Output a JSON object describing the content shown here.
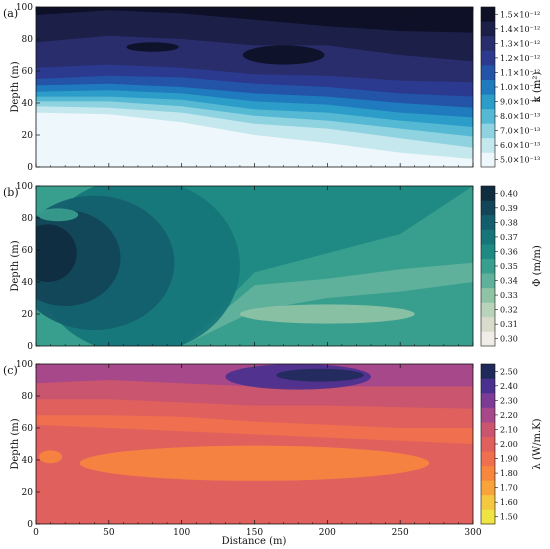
{
  "figure": {
    "xlabel": "Distance (m)"
  },
  "chart_data": [
    {
      "type": "heatmap",
      "panel_label": "(a)",
      "ylabel": "Depth (m)",
      "x": [
        0,
        300
      ],
      "y": [
        0,
        100
      ],
      "xticks": [
        0,
        50,
        100,
        150,
        200,
        250,
        300
      ],
      "yticks": [
        0,
        20,
        40,
        60,
        80,
        100
      ],
      "colorbar_label": "k (m²)",
      "colorbar_ticks": [
        "5.0×10⁻¹³",
        "6.0×10⁻¹³",
        "7.0×10⁻¹³",
        "8.0×10⁻¹³",
        "9.0×10⁻¹³",
        "1.0×10⁻¹²",
        "1.1×10⁻¹²",
        "1.2×10⁻¹²",
        "1.3×10⁻¹²",
        "1.4×10⁻¹²",
        "1.5×10⁻¹²"
      ],
      "colors": [
        "#eef7fb",
        "#c5e7ee",
        "#8fd3e0",
        "#55b9d4",
        "#2c9cc8",
        "#1f7bbd",
        "#2354a8",
        "#2b3a8f",
        "#292d6b",
        "#1c1f48",
        "#0d1026"
      ],
      "bands": [
        {
          "level": 0,
          "upper": [
            [
              0,
              34
            ],
            [
              50,
              33
            ],
            [
              100,
              28
            ],
            [
              150,
              20
            ],
            [
              200,
              15
            ],
            [
              250,
              9
            ],
            [
              300,
              5
            ]
          ]
        },
        {
          "level": 1,
          "upper": [
            [
              0,
              38
            ],
            [
              50,
              37
            ],
            [
              100,
              34
            ],
            [
              150,
              27
            ],
            [
              200,
              24
            ],
            [
              250,
              18
            ],
            [
              300,
              12
            ]
          ]
        },
        {
          "level": 2,
          "upper": [
            [
              0,
              41
            ],
            [
              50,
              41
            ],
            [
              100,
              38
            ],
            [
              150,
              32
            ],
            [
              200,
              29
            ],
            [
              250,
              24
            ],
            [
              300,
              19
            ]
          ]
        },
        {
          "level": 3,
          "upper": [
            [
              0,
              44
            ],
            [
              50,
              44
            ],
            [
              100,
              42
            ],
            [
              150,
              36
            ],
            [
              200,
              34
            ],
            [
              250,
              29
            ],
            [
              300,
              25
            ]
          ]
        },
        {
          "level": 4,
          "upper": [
            [
              0,
              47
            ],
            [
              50,
              48
            ],
            [
              100,
              46
            ],
            [
              150,
              41
            ],
            [
              200,
              39
            ],
            [
              250,
              34
            ],
            [
              300,
              31
            ]
          ]
        },
        {
          "level": 5,
          "upper": [
            [
              0,
              51
            ],
            [
              50,
              52
            ],
            [
              100,
              50
            ],
            [
              150,
              46
            ],
            [
              200,
              44
            ],
            [
              250,
              40
            ],
            [
              300,
              37
            ]
          ]
        },
        {
          "level": 6,
          "upper": [
            [
              0,
              55
            ],
            [
              50,
              57
            ],
            [
              100,
              56
            ],
            [
              150,
              52
            ],
            [
              200,
              50
            ],
            [
              250,
              46
            ],
            [
              300,
              44
            ]
          ]
        },
        {
          "level": 7,
          "upper": [
            [
              0,
              62
            ],
            [
              50,
              64
            ],
            [
              100,
              62
            ],
            [
              150,
              58
            ],
            [
              200,
              57
            ],
            [
              250,
              54
            ],
            [
              300,
              53
            ]
          ]
        },
        {
          "level": 8,
          "upper": [
            [
              0,
              78
            ],
            [
              50,
              82
            ],
            [
              100,
              80
            ],
            [
              150,
              76
            ],
            [
              200,
              76
            ],
            [
              250,
              70
            ],
            [
              300,
              66
            ]
          ]
        },
        {
          "level": 9,
          "upper": [
            [
              0,
              95
            ],
            [
              50,
              98
            ],
            [
              100,
              96
            ],
            [
              150,
              92
            ],
            [
              200,
              88
            ],
            [
              250,
              85
            ],
            [
              300,
              84
            ]
          ]
        },
        {
          "level": 8,
          "upper": [
            [
              0,
              100
            ],
            [
              300,
              100
            ]
          ]
        }
      ],
      "blobs": [
        {
          "level": 10,
          "center": [
            170,
            70
          ],
          "radius": [
            28,
            6
          ]
        },
        {
          "level": 10,
          "center": [
            80,
            75
          ],
          "radius": [
            18,
            3
          ]
        }
      ]
    },
    {
      "type": "heatmap",
      "panel_label": "(b)",
      "ylabel": "Depth (m)",
      "x": [
        0,
        300
      ],
      "y": [
        0,
        100
      ],
      "xticks": [
        0,
        50,
        100,
        150,
        200,
        250,
        300
      ],
      "yticks": [
        0,
        20,
        40,
        60,
        80,
        100
      ],
      "colorbar_label": "Φ (m/m)",
      "colorbar_ticks": [
        "0.30",
        "0.31",
        "0.32",
        "0.33",
        "0.34",
        "0.35",
        "0.36",
        "0.37",
        "0.38",
        "0.39",
        "0.40"
      ],
      "colors": [
        "#f0ede9",
        "#d9dccd",
        "#b8d3b9",
        "#8fc3a6",
        "#5fb19b",
        "#389e8d",
        "#1e8a83",
        "#157579",
        "#135e6c",
        "#124558",
        "#0f2d3f"
      ],
      "bands": [
        {
          "level": 5,
          "upper": [
            [
              0,
              0
            ],
            [
              300,
              0
            ]
          ]
        },
        {
          "level": 4,
          "upper": [
            [
              100,
              0
            ],
            [
              150,
              22
            ],
            [
              200,
              30
            ],
            [
              250,
              34
            ],
            [
              300,
              40
            ]
          ]
        },
        {
          "level": 5,
          "upper": [
            [
              100,
              0
            ],
            [
              150,
              38
            ],
            [
              200,
              42
            ],
            [
              250,
              48
            ],
            [
              300,
              52
            ]
          ]
        },
        {
          "level": 6,
          "upper": [
            [
              100,
              0
            ],
            [
              150,
              46
            ],
            [
              200,
              58
            ],
            [
              250,
              70
            ],
            [
              300,
              100
            ]
          ]
        }
      ],
      "blobs": [
        {
          "level": 7,
          "center": [
            70,
            50
          ],
          "radius": [
            70,
            55
          ]
        },
        {
          "level": 8,
          "center": [
            40,
            52
          ],
          "radius": [
            55,
            42
          ]
        },
        {
          "level": 9,
          "center": [
            20,
            55
          ],
          "radius": [
            38,
            30
          ]
        },
        {
          "level": 10,
          "center": [
            8,
            58
          ],
          "radius": [
            20,
            18
          ]
        },
        {
          "level": 5,
          "center": [
            15,
            82
          ],
          "radius": [
            14,
            4
          ]
        },
        {
          "level": 3,
          "center": [
            200,
            20
          ],
          "radius": [
            60,
            6
          ]
        }
      ]
    },
    {
      "type": "heatmap",
      "panel_label": "(c)",
      "ylabel": "Depth (m)",
      "x": [
        0,
        300
      ],
      "y": [
        0,
        100
      ],
      "xticks": [
        0,
        50,
        100,
        150,
        200,
        250,
        300
      ],
      "yticks": [
        0,
        20,
        40,
        60,
        80,
        100
      ],
      "colorbar_label": "λ (W/m.K)",
      "colorbar_ticks": [
        "1.50",
        "1.60",
        "1.70",
        "1.80",
        "1.90",
        "2.00",
        "2.10",
        "2.20",
        "2.30",
        "2.40",
        "2.50"
      ],
      "colors": [
        "#f0e442",
        "#f5c842",
        "#f9a33b",
        "#f7863f",
        "#ef6f4e",
        "#e0605e",
        "#c9556e",
        "#a6488a",
        "#7c3c95",
        "#4b318f",
        "#1f2a5b"
      ],
      "bands": [
        {
          "level": 5,
          "upper": [
            [
              0,
              5
            ],
            [
              100,
              6
            ],
            [
              200,
              4
            ],
            [
              300,
              3
            ]
          ]
        },
        {
          "level": 4,
          "upper": [
            [
              0,
              62
            ],
            [
              50,
              60
            ],
            [
              100,
              58
            ],
            [
              150,
              56
            ],
            [
              200,
              54
            ],
            [
              250,
              52
            ],
            [
              300,
              50
            ]
          ]
        },
        {
          "level": 5,
          "upper": [
            [
              0,
              68
            ],
            [
              50,
              68
            ],
            [
              100,
              67
            ],
            [
              150,
              64
            ],
            [
              200,
              62
            ],
            [
              250,
              60
            ],
            [
              300,
              60
            ]
          ]
        },
        {
          "level": 6,
          "upper": [
            [
              0,
              78
            ],
            [
              50,
              78
            ],
            [
              100,
              76
            ],
            [
              150,
              74
            ],
            [
              200,
              74
            ],
            [
              250,
              73
            ],
            [
              300,
              72
            ]
          ]
        },
        {
          "level": 7,
          "upper": [
            [
              0,
              88
            ],
            [
              50,
              90
            ],
            [
              100,
              88
            ],
            [
              150,
              86
            ],
            [
              200,
              86
            ],
            [
              250,
              86
            ],
            [
              300,
              86
            ]
          ]
        },
        {
          "level": 8,
          "upper": [
            [
              0,
              100
            ],
            [
              300,
              100
            ]
          ]
        }
      ],
      "blobs": [
        {
          "level": 3,
          "center": [
            150,
            38
          ],
          "radius": [
            120,
            11
          ]
        },
        {
          "level": 3,
          "center": [
            10,
            42
          ],
          "radius": [
            8,
            4
          ]
        },
        {
          "level": 9,
          "center": [
            180,
            92
          ],
          "radius": [
            50,
            8
          ]
        },
        {
          "level": 10,
          "center": [
            195,
            93
          ],
          "radius": [
            30,
            4
          ]
        }
      ]
    }
  ]
}
